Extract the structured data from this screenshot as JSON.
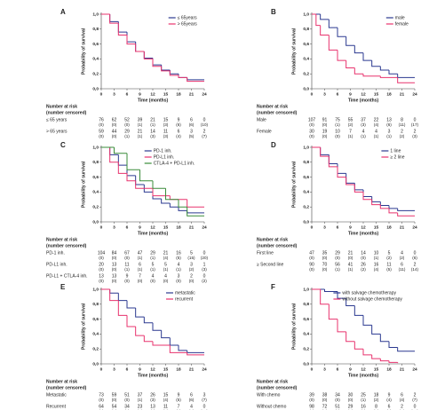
{
  "chart_data": [
    {
      "type": "line",
      "step": true,
      "panel": "A",
      "y_label": "Probability of survival",
      "x_label": "Time (months)",
      "risk_title": [
        "Number at risk",
        "(number censored)"
      ],
      "xlim": [
        0,
        24
      ],
      "xticks": [
        0,
        3,
        6,
        9,
        12,
        15,
        18,
        21,
        24
      ],
      "ylim": [
        0,
        1
      ],
      "yticks": [
        {
          "value": 0,
          "label": "0,0"
        },
        {
          "value": 0.2,
          "label": "0,2"
        },
        {
          "value": 0.4,
          "label": "0,4"
        },
        {
          "value": 0.6,
          "label": "0,6"
        },
        {
          "value": 0.8,
          "label": "0,8"
        },
        {
          "value": 1,
          "label": "1,0"
        }
      ],
      "legend": "top-right",
      "series": [
        {
          "name": "≤ 65years",
          "color": "#2b3990",
          "x": [
            0,
            2,
            4,
            6,
            8,
            10,
            12,
            14,
            16,
            18,
            20,
            24
          ],
          "values": [
            1,
            0.9,
            0.76,
            0.63,
            0.5,
            0.41,
            0.32,
            0.25,
            0.2,
            0.15,
            0.12,
            0.12
          ]
        },
        {
          "name": "> 65years",
          "color": "#e8336e",
          "x": [
            0,
            2,
            4,
            6,
            8,
            10,
            12,
            14,
            16,
            18,
            20,
            24
          ],
          "values": [
            1,
            0.88,
            0.72,
            0.6,
            0.5,
            0.4,
            0.3,
            0.24,
            0.18,
            0.15,
            0.1,
            0.1
          ]
        }
      ],
      "risk_table": [
        {
          "label": "≤ 65 years",
          "counts": [
            76,
            62,
            52,
            39,
            21,
            15,
            9,
            6,
            0
          ],
          "censored": [
            "(0)",
            "(0)",
            "(0)",
            "(1)",
            "(1)",
            "(3)",
            "(6)",
            "(6)",
            "(10)"
          ]
        },
        {
          "label": "> 65 years",
          "counts": [
            59,
            44,
            29,
            21,
            14,
            11,
            6,
            3,
            2
          ],
          "censored": [
            "(0)",
            "(0)",
            "(1)",
            "(1)",
            "(3)",
            "(3)",
            "(4)",
            "(5)",
            "(7)"
          ]
        }
      ]
    },
    {
      "type": "line",
      "step": true,
      "panel": "B",
      "y_label": "Probability of survival",
      "x_label": "Time (months)",
      "risk_title": [
        "Number at risk",
        "(number censored)"
      ],
      "xlim": [
        0,
        24
      ],
      "xticks": [
        0,
        3,
        6,
        9,
        12,
        15,
        18,
        21,
        24
      ],
      "ylim": [
        0,
        1
      ],
      "yticks": [
        {
          "value": 0,
          "label": "0,0"
        },
        {
          "value": 0.2,
          "label": "0,2"
        },
        {
          "value": 0.4,
          "label": "0,4"
        },
        {
          "value": 0.6,
          "label": "0,6"
        },
        {
          "value": 0.8,
          "label": "0,8"
        },
        {
          "value": 1,
          "label": "1,0"
        }
      ],
      "legend": "top-right",
      "series": [
        {
          "name": "male",
          "color": "#2b3990",
          "x": [
            0,
            2,
            4,
            6,
            8,
            10,
            12,
            14,
            16,
            18,
            20,
            24
          ],
          "values": [
            1,
            0.93,
            0.82,
            0.7,
            0.58,
            0.48,
            0.38,
            0.3,
            0.25,
            0.2,
            0.15,
            0.15
          ]
        },
        {
          "name": "female",
          "color": "#e8336e",
          "x": [
            0,
            1,
            2,
            4,
            6,
            8,
            10,
            12,
            16,
            20,
            24
          ],
          "values": [
            1,
            0.85,
            0.72,
            0.52,
            0.38,
            0.28,
            0.2,
            0.17,
            0.15,
            0.08,
            0.08
          ]
        }
      ],
      "risk_table": [
        {
          "label": "Male",
          "counts": [
            107,
            91,
            75,
            55,
            37,
            22,
            13,
            8,
            0
          ],
          "censored": [
            "(0)",
            "(0)",
            "(1)",
            "(2)",
            "(3)",
            "(4)",
            "(6)",
            "(11)",
            "(17)"
          ]
        },
        {
          "label": "Female",
          "counts": [
            30,
            19,
            10,
            7,
            4,
            4,
            3,
            2,
            2
          ],
          "censored": [
            "(0)",
            "(0)",
            "(0)",
            "(1)",
            "(1)",
            "(1)",
            "(1)",
            "(2)",
            "(3)"
          ]
        }
      ]
    },
    {
      "type": "line",
      "step": true,
      "panel": "C",
      "y_label": "Probability of survival",
      "x_label": "Time (months)",
      "risk_title": [
        "Number at risk",
        "(number censored)"
      ],
      "xlim": [
        0,
        24
      ],
      "xticks": [
        0,
        3,
        6,
        9,
        12,
        15,
        18,
        21,
        24
      ],
      "ylim": [
        0,
        1
      ],
      "yticks": [
        {
          "value": 0,
          "label": "0,0"
        },
        {
          "value": 0.2,
          "label": "0,2"
        },
        {
          "value": 0.4,
          "label": "0,4"
        },
        {
          "value": 0.6,
          "label": "0,6"
        },
        {
          "value": 0.8,
          "label": "0,8"
        },
        {
          "value": 1,
          "label": "1,0"
        }
      ],
      "legend": "top-right",
      "series": [
        {
          "name": "PD-1 inh.",
          "color": "#2b3990",
          "x": [
            0,
            2,
            4,
            6,
            8,
            10,
            12,
            14,
            16,
            18,
            20,
            24
          ],
          "values": [
            1,
            0.9,
            0.76,
            0.62,
            0.5,
            0.4,
            0.31,
            0.25,
            0.2,
            0.15,
            0.12,
            0.12
          ]
        },
        {
          "name": "PD-L1 inh.",
          "color": "#e8336e",
          "x": [
            0,
            2,
            4,
            6,
            8,
            12,
            16,
            20,
            24
          ],
          "values": [
            1,
            0.8,
            0.65,
            0.55,
            0.45,
            0.35,
            0.3,
            0.2,
            0.2
          ]
        },
        {
          "name": "CTLA-4 + PD-L1 inh.",
          "color": "#3a8c3a",
          "x": [
            0,
            3,
            6,
            9,
            12,
            15,
            18,
            20,
            24
          ],
          "values": [
            1,
            0.92,
            0.7,
            0.55,
            0.45,
            0.3,
            0.2,
            0.08,
            0.08
          ]
        }
      ],
      "risk_table": [
        {
          "label": "PD-1 inh.",
          "counts": [
            104,
            84,
            67,
            47,
            29,
            21,
            16,
            5,
            0
          ],
          "censored": [
            "(0)",
            "(0)",
            "(0)",
            "(1)",
            "(1)",
            "(4)",
            "(5)",
            "(15)",
            "(20)"
          ]
        },
        {
          "label": "PD-L1 inh.",
          "counts": [
            20,
            13,
            11,
            6,
            5,
            5,
            4,
            3,
            1
          ],
          "censored": [
            "(0)",
            "(0)",
            "(1)",
            "(1)",
            "(1)",
            "(1)",
            "(1)",
            "(2)",
            "(3)"
          ]
        },
        {
          "label": "PD-L1 + CTLA-4 inh.",
          "counts": [
            13,
            13,
            9,
            7,
            4,
            4,
            3,
            2,
            0
          ],
          "censored": [
            "(0)",
            "(0)",
            "(0)",
            "(0)",
            "(0)",
            "(0)",
            "(0)",
            "(0)",
            "(2)"
          ]
        }
      ]
    },
    {
      "type": "line",
      "step": true,
      "panel": "D",
      "y_label": "Probability of survival",
      "x_label": "Time (months)",
      "risk_title": [
        "Number at risk",
        "(number censored)"
      ],
      "xlim": [
        0,
        24
      ],
      "xticks": [
        0,
        3,
        6,
        9,
        12,
        15,
        18,
        21,
        24
      ],
      "ylim": [
        0,
        1
      ],
      "yticks": [
        {
          "value": 0,
          "label": "0,0"
        },
        {
          "value": 0.2,
          "label": "0,2"
        },
        {
          "value": 0.4,
          "label": "0,4"
        },
        {
          "value": 0.6,
          "label": "0,6"
        },
        {
          "value": 0.8,
          "label": "0,8"
        },
        {
          "value": 1,
          "label": "1,0"
        }
      ],
      "legend": "top-right",
      "series": [
        {
          "name": "1 line",
          "color": "#2b3990",
          "x": [
            0,
            2,
            4,
            6,
            8,
            10,
            12,
            14,
            16,
            18,
            20,
            24
          ],
          "values": [
            1,
            0.9,
            0.78,
            0.65,
            0.52,
            0.43,
            0.34,
            0.27,
            0.22,
            0.18,
            0.15,
            0.15
          ]
        },
        {
          "name": "≥ 2 line",
          "color": "#e8336e",
          "x": [
            0,
            2,
            4,
            6,
            8,
            10,
            12,
            14,
            16,
            18,
            20,
            24
          ],
          "values": [
            1,
            0.88,
            0.74,
            0.6,
            0.5,
            0.4,
            0.3,
            0.23,
            0.18,
            0.12,
            0.08,
            0.08
          ]
        }
      ],
      "risk_table": [
        {
          "label": "First line",
          "counts": [
            47,
            35,
            29,
            21,
            14,
            10,
            5,
            4,
            0
          ],
          "censored": [
            "(0)",
            "(0)",
            "(0)",
            "(0)",
            "(0)",
            "(1)",
            "(2)",
            "(2)",
            "(6)"
          ]
        },
        {
          "label": "≥ Second line",
          "counts": [
            90,
            70,
            56,
            41,
            26,
            16,
            11,
            6,
            2
          ],
          "censored": [
            "(0)",
            "(0)",
            "(1)",
            "(1)",
            "(2)",
            "(4)",
            "(5)",
            "(11)",
            "(14)"
          ]
        }
      ]
    },
    {
      "type": "line",
      "step": true,
      "panel": "E",
      "y_label": "Probability of survival",
      "x_label": "Time (months)",
      "risk_title": [
        "Number at risk",
        "(number censored)"
      ],
      "xlim": [
        0,
        24
      ],
      "xticks": [
        0,
        3,
        6,
        9,
        12,
        15,
        18,
        21,
        24
      ],
      "ylim": [
        0,
        1
      ],
      "yticks": [
        {
          "value": 0,
          "label": "0,0"
        },
        {
          "value": 0.2,
          "label": "0,2"
        },
        {
          "value": 0.4,
          "label": "0,4"
        },
        {
          "value": 0.6,
          "label": "0,6"
        },
        {
          "value": 0.8,
          "label": "0,8"
        },
        {
          "value": 1,
          "label": "1,0"
        }
      ],
      "legend": "top-right",
      "series": [
        {
          "name": "metastatic",
          "color": "#2b3990",
          "x": [
            0,
            2,
            4,
            6,
            8,
            10,
            12,
            14,
            16,
            18,
            20,
            24
          ],
          "values": [
            1,
            0.95,
            0.85,
            0.75,
            0.63,
            0.55,
            0.45,
            0.35,
            0.25,
            0.18,
            0.15,
            0.15
          ]
        },
        {
          "name": "recurrent",
          "color": "#e8336e",
          "x": [
            0,
            2,
            4,
            6,
            8,
            10,
            12,
            16,
            20,
            24
          ],
          "values": [
            1,
            0.85,
            0.65,
            0.5,
            0.38,
            0.3,
            0.25,
            0.15,
            0.12,
            0.12
          ]
        }
      ],
      "risk_table": [
        {
          "label": "Metastatic",
          "counts": [
            73,
            59,
            51,
            37,
            26,
            15,
            9,
            6,
            3
          ],
          "censored": [
            "(0)",
            "(0)",
            "(0)",
            "(1)",
            "(3)",
            "(4)",
            "(5)",
            "(6)",
            "(7)"
          ]
        },
        {
          "label": "Recurrent",
          "counts": [
            64,
            54,
            34,
            23,
            13,
            11,
            7,
            4,
            0
          ],
          "censored": [
            "(0)",
            "(0)",
            "(1)",
            "(2)",
            "(2)",
            "(2)",
            "(3)",
            "(4)",
            "(10)"
          ]
        }
      ]
    },
    {
      "type": "line",
      "step": true,
      "panel": "F",
      "y_label": "Probability of survival",
      "x_label": "Time (months)",
      "risk_title": [
        "Number at risk",
        "(number censored)"
      ],
      "xlim": [
        0,
        24
      ],
      "xticks": [
        0,
        3,
        6,
        9,
        12,
        15,
        18,
        21,
        24
      ],
      "ylim": [
        0,
        1
      ],
      "yticks": [
        {
          "value": 0,
          "label": "0,0"
        },
        {
          "value": 0.2,
          "label": "0,2"
        },
        {
          "value": 0.4,
          "label": "0,4"
        },
        {
          "value": 0.6,
          "label": "0,6"
        },
        {
          "value": 0.8,
          "label": "0,8"
        },
        {
          "value": 1,
          "label": "1,0"
        }
      ],
      "legend": "top-right",
      "series": [
        {
          "name": "with salvage chemotherapy",
          "color": "#2b3990",
          "x": [
            0,
            3,
            6,
            8,
            10,
            12,
            14,
            16,
            18,
            20,
            24
          ],
          "values": [
            1,
            0.97,
            0.88,
            0.78,
            0.65,
            0.52,
            0.4,
            0.3,
            0.22,
            0.17,
            0.17
          ]
        },
        {
          "name": "without salvage chemotherapy",
          "color": "#e8336e",
          "x": [
            0,
            2,
            4,
            6,
            8,
            10,
            12,
            14,
            16,
            18,
            20
          ],
          "values": [
            1,
            0.8,
            0.6,
            0.43,
            0.3,
            0.2,
            0.12,
            0.07,
            0.04,
            0.02,
            0.01
          ]
        }
      ],
      "risk_table": [
        {
          "label": "With chemo",
          "counts": [
            39,
            38,
            34,
            30,
            25,
            18,
            9,
            6,
            2
          ],
          "censored": [
            "(0)",
            "(0)",
            "(0)",
            "(0)",
            "(1)",
            "(2)",
            "(4)",
            "(4)",
            "(7)"
          ]
        },
        {
          "label": "Without chemo",
          "counts": [
            98,
            72,
            51,
            29,
            16,
            8,
            6,
            2,
            0
          ],
          "censored": [
            "(0)",
            "(0)",
            "(1)",
            "(2)",
            "(3)",
            "(4)",
            "(4)",
            "(7)",
            "(10)"
          ]
        }
      ]
    }
  ]
}
